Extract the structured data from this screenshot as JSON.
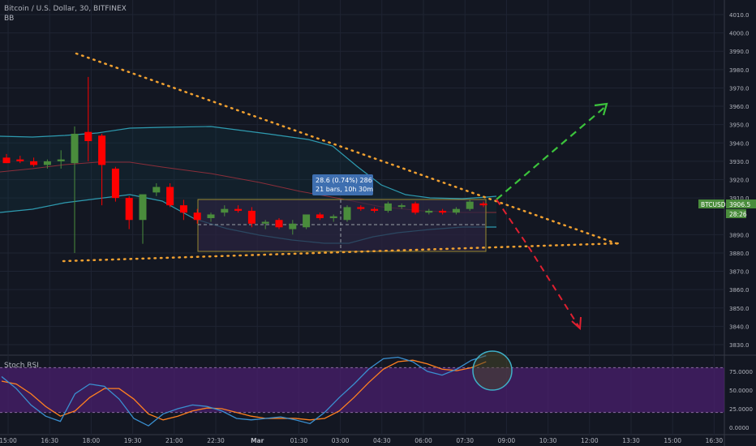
{
  "header": {
    "symbol_line": "Bitcoin / U.S. Dollar, 30, BITFINEX",
    "indicator": "BB"
  },
  "price_scale": {
    "ticks": [
      "4010.0",
      "4000.0",
      "3990.0",
      "3980.0",
      "3970.0",
      "3960.0",
      "3950.0",
      "3940.0",
      "3930.0",
      "3920.0",
      "3910.0",
      "3890.0",
      "3880.0",
      "3870.0",
      "3860.0",
      "3850.0",
      "3840.0",
      "3830.0"
    ],
    "tick_values": [
      4010,
      4000,
      3990,
      3980,
      3970,
      3960,
      3950,
      3940,
      3930,
      3920,
      3910,
      3890,
      3880,
      3870,
      3860,
      3850,
      3840,
      3830
    ]
  },
  "time_scale": {
    "ticks": [
      "15:00",
      "16:30",
      "18:00",
      "19:30",
      "21:00",
      "22:30",
      "Mar",
      "01:30",
      "03:00",
      "04:30",
      "06:00",
      "07:30",
      "09:00",
      "10:30",
      "12:00",
      "13:30",
      "15:00",
      "16:30"
    ]
  },
  "last_price": {
    "ticker": "BTCUSD",
    "value": "3906.5",
    "countdown": "28:26"
  },
  "measure_tooltip": {
    "line1": "28.6 (0.74%) 286",
    "line2": "21 bars, 10h 30m"
  },
  "stoch_rsi": {
    "label": "Stoch RSI",
    "ticks": [
      "75.0000",
      "50.0000",
      "25.0000",
      "0.0000"
    ],
    "tick_values": [
      75,
      50,
      25,
      0
    ],
    "upper_band": 80,
    "lower_band": 20
  },
  "colors": {
    "background": "#131722",
    "up_candle": "#4a8c3c",
    "down_candle": "#ff0000",
    "bb_band": "#2e9bb0",
    "bb_basis": "#8a2e3a",
    "trendline": "#f0a030",
    "bull_arrow": "#3cc43c",
    "bear_arrow": "#e02030",
    "rsi_k": "#3a8fd0",
    "rsi_d": "#ff8020",
    "rsi_fill": "#4a1f6e"
  },
  "chart_data": [
    {
      "type": "candlestick",
      "title": "Bitcoin / U.S. Dollar, 30, BITFINEX",
      "ylim": [
        3825,
        4013
      ],
      "series": [
        {
          "name": "BTCUSD",
          "values": [
            {
              "o": 3932,
              "h": 3934,
              "l": 3929,
              "c": 3929
            },
            {
              "o": 3931,
              "h": 3933,
              "l": 3929,
              "c": 3930
            },
            {
              "o": 3930,
              "h": 3932,
              "l": 3927,
              "c": 3928
            },
            {
              "o": 3928,
              "h": 3931,
              "l": 3926,
              "c": 3930
            },
            {
              "o": 3930,
              "h": 3936,
              "l": 3926,
              "c": 3931
            },
            {
              "o": 3929,
              "h": 3949,
              "l": 3880,
              "c": 3945
            },
            {
              "o": 3946,
              "h": 3976,
              "l": 3930,
              "c": 3941
            },
            {
              "o": 3944,
              "h": 3945,
              "l": 3906,
              "c": 3928
            },
            {
              "o": 3926,
              "h": 3927,
              "l": 3908,
              "c": 3910
            },
            {
              "o": 3910,
              "h": 3911,
              "l": 3893,
              "c": 3898
            },
            {
              "o": 3898,
              "h": 3910,
              "l": 3885,
              "c": 3912
            },
            {
              "o": 3913,
              "h": 3918,
              "l": 3911,
              "c": 3916
            },
            {
              "o": 3916,
              "h": 3918,
              "l": 3905,
              "c": 3906
            },
            {
              "o": 3906,
              "h": 3909,
              "l": 3898,
              "c": 3902
            },
            {
              "o": 3902,
              "h": 3904,
              "l": 3896,
              "c": 3898
            },
            {
              "o": 3899,
              "h": 3902,
              "l": 3897,
              "c": 3901
            },
            {
              "o": 3902,
              "h": 3906,
              "l": 3900,
              "c": 3904
            },
            {
              "o": 3904,
              "h": 3906,
              "l": 3902,
              "c": 3903
            },
            {
              "o": 3903,
              "h": 3905,
              "l": 3894,
              "c": 3896
            },
            {
              "o": 3896,
              "h": 3898,
              "l": 3893,
              "c": 3897
            },
            {
              "o": 3898,
              "h": 3899,
              "l": 3893,
              "c": 3894
            },
            {
              "o": 3893,
              "h": 3898,
              "l": 3890,
              "c": 3896
            },
            {
              "o": 3894,
              "h": 3900,
              "l": 3893,
              "c": 3901
            },
            {
              "o": 3901,
              "h": 3902,
              "l": 3898,
              "c": 3899
            },
            {
              "o": 3899,
              "h": 3901,
              "l": 3897,
              "c": 3900
            },
            {
              "o": 3898,
              "h": 3906,
              "l": 3897,
              "c": 3905
            },
            {
              "o": 3905,
              "h": 3906,
              "l": 3903,
              "c": 3904
            },
            {
              "o": 3904,
              "h": 3905,
              "l": 3902,
              "c": 3903
            },
            {
              "o": 3903,
              "h": 3908,
              "l": 3902,
              "c": 3907
            },
            {
              "o": 3906,
              "h": 3907,
              "l": 3904,
              "c": 3906
            },
            {
              "o": 3907,
              "h": 3908,
              "l": 3901,
              "c": 3902
            },
            {
              "o": 3902,
              "h": 3904,
              "l": 3901,
              "c": 3903
            },
            {
              "o": 3903,
              "h": 3904,
              "l": 3901,
              "c": 3902
            },
            {
              "o": 3902,
              "h": 3905,
              "l": 3901,
              "c": 3904
            },
            {
              "o": 3904,
              "h": 3909,
              "l": 3903,
              "c": 3908
            },
            {
              "o": 3907,
              "h": 3908,
              "l": 3905,
              "c": 3906
            }
          ]
        }
      ]
    },
    {
      "type": "line",
      "title": "Stoch RSI",
      "ylim": [
        0,
        100
      ],
      "series": [
        {
          "name": "K",
          "values": [
            68,
            52,
            30,
            15,
            8,
            45,
            58,
            55,
            38,
            12,
            2,
            18,
            25,
            30,
            28,
            22,
            12,
            10,
            12,
            14,
            10,
            5,
            20,
            40,
            58,
            78,
            92,
            94,
            88,
            75,
            70,
            78,
            90,
            96
          ]
        },
        {
          "name": "D",
          "values": [
            62,
            58,
            45,
            28,
            15,
            22,
            40,
            52,
            52,
            38,
            18,
            10,
            15,
            22,
            26,
            25,
            20,
            15,
            12,
            12,
            12,
            10,
            12,
            22,
            40,
            60,
            78,
            88,
            90,
            85,
            78,
            76,
            80,
            88
          ]
        }
      ]
    }
  ]
}
